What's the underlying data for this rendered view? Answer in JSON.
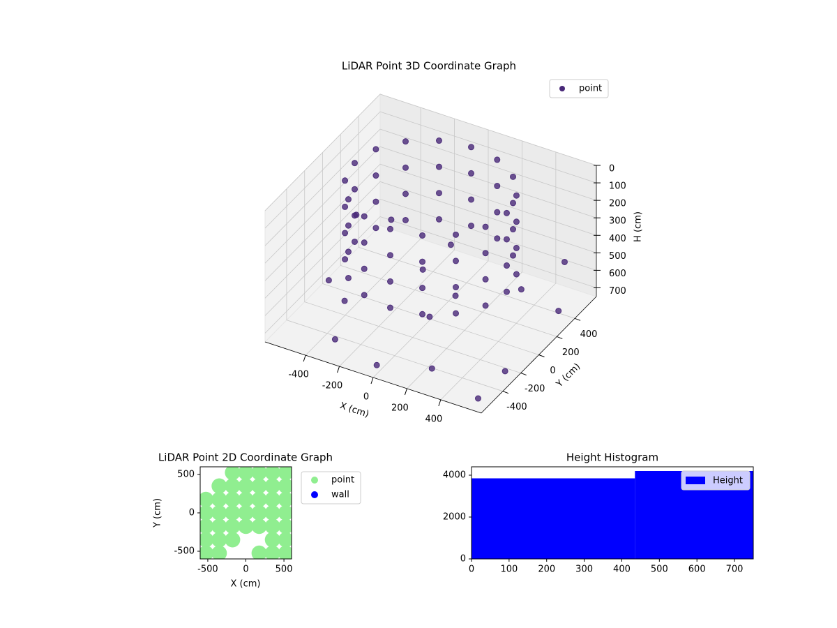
{
  "chart_data": [
    {
      "type": "scatter3d",
      "title": "LiDAR Point 3D Coordinate Graph",
      "xlabel": "X (cm)",
      "ylabel": "Y (cm)",
      "zlabel": "H (cm)",
      "xlim": [
        -640,
        640
      ],
      "ylim": [
        -640,
        640
      ],
      "zlim": [
        0,
        750
      ],
      "z_inverted": true,
      "xticks": [
        -400,
        -200,
        0,
        200,
        400
      ],
      "yticks": [
        -400,
        -200,
        0,
        200,
        400
      ],
      "zticks": [
        0,
        100,
        200,
        300,
        400,
        500,
        600,
        700
      ],
      "legend": "upper right",
      "series": [
        {
          "name": "point",
          "color": "#482878",
          "x": [
            450,
            416,
            318,
            172,
            0,
            -172,
            -318,
            -416,
            -450,
            -416,
            -318,
            -172,
            0,
            172,
            318,
            416,
            450,
            416,
            318,
            172,
            0,
            -172,
            -318,
            -416,
            -450,
            -416,
            -318,
            -172,
            0,
            172,
            318,
            416,
            450,
            416,
            318,
            172,
            0,
            -172,
            -318,
            -416,
            -450,
            -416,
            -318,
            -172,
            0,
            172,
            318,
            416,
            450,
            416,
            318,
            172,
            0,
            -172,
            -318,
            -416,
            -450,
            -416,
            -318,
            -172,
            0,
            172,
            318,
            416,
            -600,
            -550,
            -300,
            0,
            300,
            600,
            650,
            500,
            -200,
            -500,
            100,
            -100,
            200,
            -350,
            350,
            600
          ],
          "y": [
            0,
            172,
            318,
            416,
            450,
            416,
            318,
            172,
            0,
            -172,
            -318,
            -416,
            -450,
            -416,
            -318,
            -172,
            0,
            172,
            318,
            416,
            450,
            416,
            318,
            172,
            0,
            -172,
            -318,
            -416,
            -450,
            -416,
            -318,
            -172,
            0,
            172,
            318,
            416,
            450,
            416,
            318,
            172,
            0,
            -172,
            -318,
            -416,
            -450,
            -416,
            -318,
            -172,
            0,
            172,
            318,
            416,
            450,
            416,
            318,
            172,
            0,
            -172,
            -318,
            -416,
            -450,
            -416,
            -318,
            -172,
            300,
            -100,
            -500,
            -600,
            -550,
            -300,
            200,
            550,
            600,
            500,
            -200,
            100,
            -100,
            -300,
            350,
            -600
          ],
          "z": [
            0,
            0,
            0,
            0,
            0,
            0,
            0,
            0,
            0,
            0,
            0,
            0,
            0,
            0,
            0,
            0,
            150,
            150,
            150,
            150,
            150,
            150,
            150,
            150,
            150,
            150,
            150,
            150,
            150,
            150,
            150,
            150,
            300,
            300,
            300,
            300,
            300,
            300,
            300,
            300,
            300,
            300,
            300,
            300,
            300,
            300,
            300,
            300,
            450,
            450,
            450,
            450,
            450,
            450,
            450,
            450,
            450,
            450,
            450,
            450,
            450,
            450,
            450,
            450,
            500,
            650,
            700,
            700,
            650,
            700,
            600,
            550,
            700,
            600,
            600,
            550,
            500,
            600,
            650,
            700
          ]
        }
      ]
    },
    {
      "type": "scatter",
      "title": "LiDAR Point 2D Coordinate Graph",
      "xlabel": "X (cm)",
      "ylabel": "Y (cm)",
      "xlim": [
        -600,
        600
      ],
      "ylim": [
        -600,
        600
      ],
      "xticks": [
        -500,
        0,
        500
      ],
      "yticks": [
        -500,
        0,
        500
      ],
      "legend": "outside right",
      "series": [
        {
          "name": "point",
          "color": "#90ee90",
          "x": [
            -175,
            0,
            175,
            350,
            525,
            -350,
            -175,
            0,
            175,
            350,
            525,
            -525,
            -350,
            -175,
            0,
            175,
            350,
            525,
            -525,
            -350,
            -175,
            0,
            175,
            350,
            525,
            -525,
            -350,
            -175,
            0,
            175,
            350,
            525,
            -525,
            -350,
            -175,
            350,
            525,
            -525,
            -350,
            175,
            350,
            525
          ],
          "y": [
            525,
            525,
            525,
            525,
            525,
            350,
            350,
            350,
            350,
            350,
            350,
            175,
            175,
            175,
            175,
            175,
            175,
            175,
            0,
            0,
            0,
            0,
            0,
            0,
            0,
            -175,
            -175,
            -175,
            -175,
            -175,
            -175,
            -175,
            -350,
            -350,
            -350,
            -350,
            -350,
            -525,
            -525,
            -525,
            -525,
            -525
          ]
        },
        {
          "name": "wall",
          "color": "#0000ff",
          "x": [],
          "y": []
        }
      ]
    },
    {
      "type": "histogram",
      "title": "Height Histogram",
      "name": "Height",
      "color": "#0000ff",
      "bins": [
        0,
        435,
        750
      ],
      "counts": [
        3850,
        4200
      ],
      "xlim": [
        0,
        750
      ],
      "ylim": [
        0,
        4400
      ],
      "xticks": [
        0,
        100,
        200,
        300,
        400,
        500,
        600,
        700
      ],
      "yticks": [
        0,
        2000,
        4000
      ],
      "legend": "upper right"
    }
  ]
}
